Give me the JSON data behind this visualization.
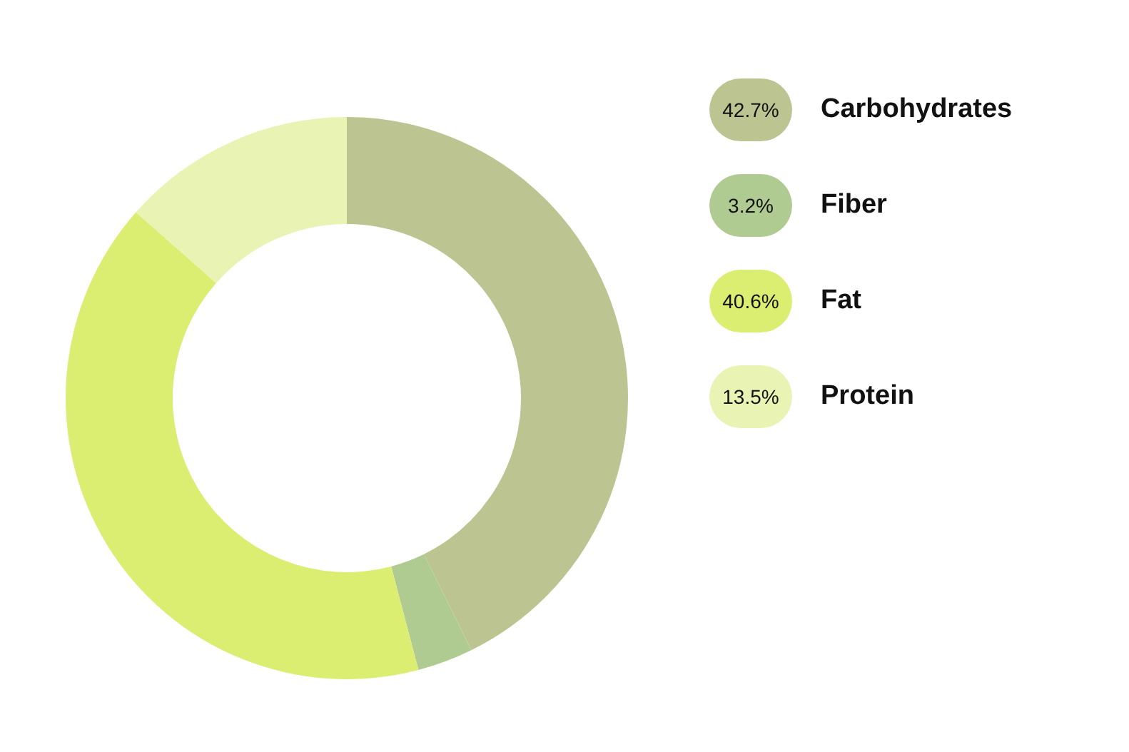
{
  "chart_data": {
    "type": "donut",
    "categories": [
      "Carbohydrates",
      "Fiber",
      "Fat",
      "Protein"
    ],
    "values": [
      42.7,
      3.2,
      40.6,
      13.5
    ],
    "colors": [
      "#bcc592",
      "#b0cb92",
      "#dcee72",
      "#e9f3b3"
    ],
    "value_labels": [
      "42.7%",
      "3.2%",
      "40.6%",
      "13.5%"
    ],
    "legend": "right"
  }
}
